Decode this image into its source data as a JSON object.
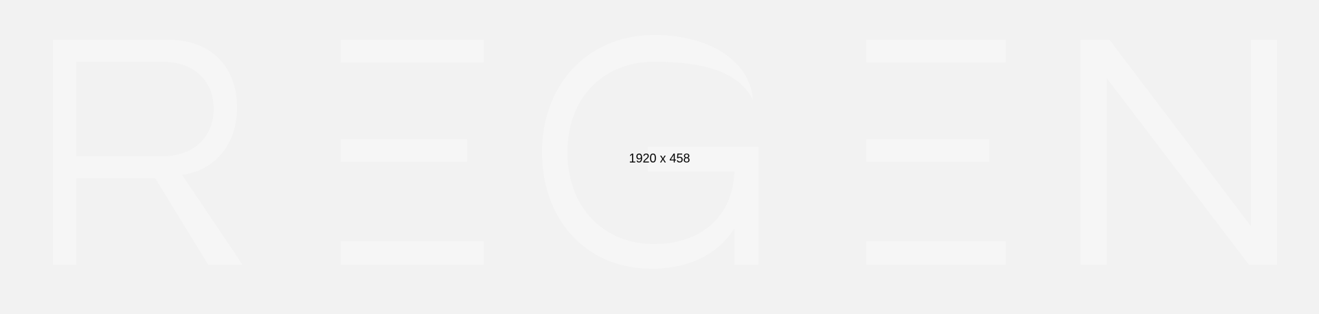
{
  "placeholder": {
    "dimensions_text": "1920 x 458",
    "wordmark": "REGEN",
    "background_color": "#f2f2f2",
    "letter_color": "#f6f6f6",
    "label_color": "#000000"
  }
}
